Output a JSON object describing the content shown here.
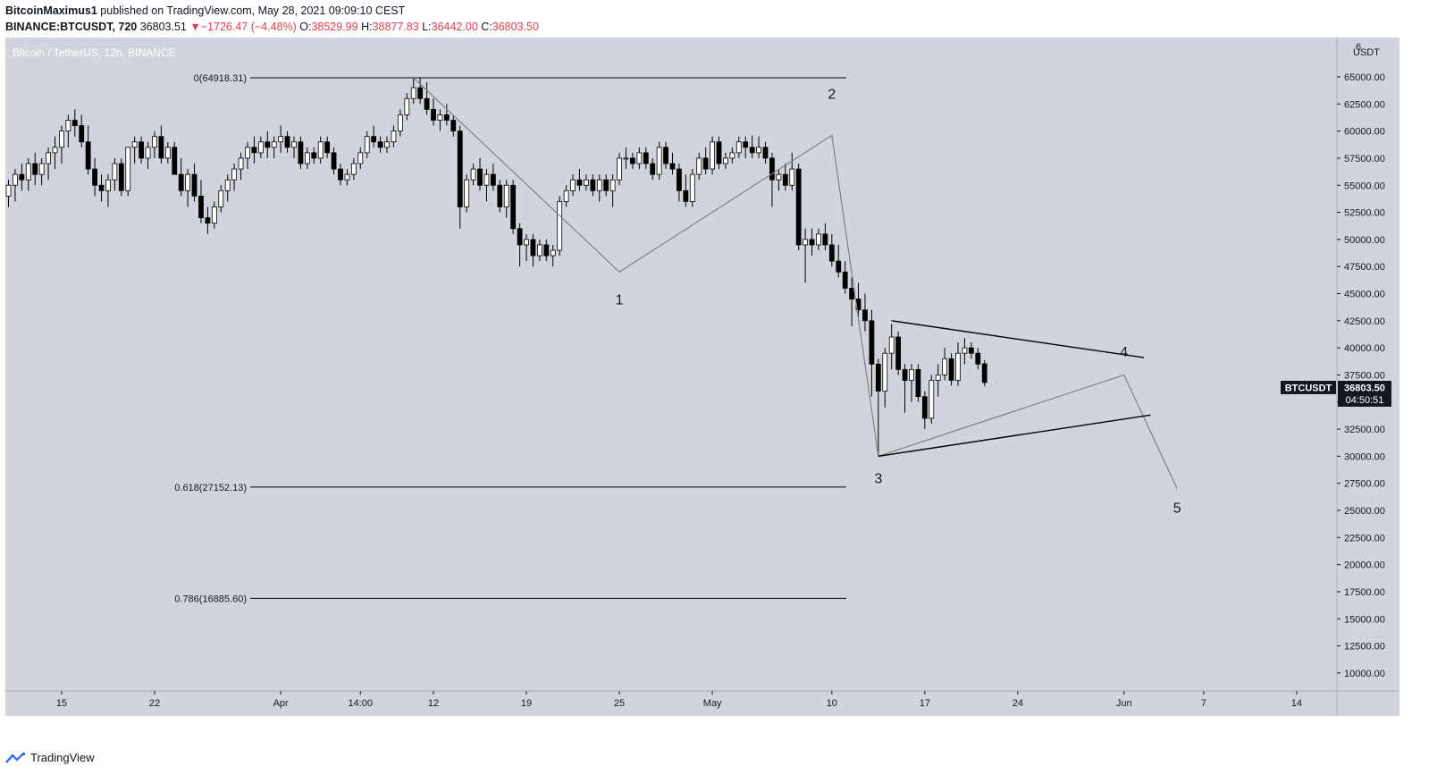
{
  "header": {
    "publisher": "BitcoinMaximus1",
    "published_text": "published on TradingView.com, May 28, 2021 09:09:10 CEST",
    "symbol_line": "BINANCE:BTCUSDT, 720",
    "last": "36803.51",
    "change_arrow": "▼",
    "change": "−1726.47 (−4.48%)",
    "o_label": "O:",
    "o": "38529.99",
    "h_label": "H:",
    "h": "38877.83",
    "l_label": "L:",
    "l": "36442.00",
    "c_label": "C:",
    "c": "36803.50"
  },
  "chart_title": "Bitcoin / TetherUS, 12h, BINANCE",
  "currency_label": "USDT",
  "price_axis_top_partial": "6",
  "price_tag": {
    "symbol": "BTCUSDT",
    "price": "36803.50",
    "countdown": "04:50:51"
  },
  "footer": {
    "brand": "TradingView"
  },
  "colors": {
    "background": "#d1d4dc",
    "candle_up": "#ffffff",
    "candle_down": "#000000",
    "wave": "#808080",
    "trendline": "#000000",
    "accent_red": "#e0424d"
  },
  "chart_data": {
    "type": "candlestick",
    "title": "Bitcoin / TetherUS, 12h, BINANCE",
    "ylim": [
      9000,
      66500
    ],
    "y_ticks": [
      10000,
      12500,
      15000,
      17500,
      20000,
      22500,
      25000,
      27500,
      30000,
      32500,
      35000,
      37500,
      40000,
      42500,
      45000,
      47500,
      50000,
      52500,
      55000,
      57500,
      60000,
      62500,
      65000
    ],
    "y_tick_labels": [
      "10000.00",
      "12500.00",
      "15000.00",
      "17500.00",
      "20000.00",
      "22500.00",
      "25000.00",
      "27500.00",
      "30000.00",
      "32500.00",
      "35000.00",
      "37500.00",
      "40000.00",
      "42500.00",
      "45000.00",
      "47500.00",
      "50000.00",
      "52500.00",
      "55000.00",
      "57500.00",
      "60000.00",
      "62500.00",
      "65000.00"
    ],
    "x_ticks": [
      {
        "label": "15",
        "t": 8
      },
      {
        "label": "22",
        "t": 22
      },
      {
        "label": "Apr",
        "t": 41
      },
      {
        "label": "14:00",
        "t": 53
      },
      {
        "label": "12",
        "t": 64
      },
      {
        "label": "19",
        "t": 78
      },
      {
        "label": "25",
        "t": 92
      },
      {
        "label": "May",
        "t": 106
      },
      {
        "label": "10",
        "t": 124
      },
      {
        "label": "17",
        "t": 138
      },
      {
        "label": "24",
        "t": 152
      },
      {
        "label": "Jun",
        "t": 168
      },
      {
        "label": "7",
        "t": 180
      },
      {
        "label": "14",
        "t": 194
      }
    ],
    "candles": [
      [
        0,
        54000,
        55500,
        53000,
        55000
      ],
      [
        1,
        55000,
        56500,
        53500,
        56000
      ],
      [
        2,
        56000,
        57000,
        54500,
        55500
      ],
      [
        3,
        55500,
        57500,
        54500,
        57000
      ],
      [
        4,
        57000,
        58000,
        55000,
        56000
      ],
      [
        5,
        56000,
        57500,
        55000,
        57000
      ],
      [
        6,
        57000,
        58500,
        55500,
        58000
      ],
      [
        7,
        58000,
        59500,
        56500,
        58500
      ],
      [
        8,
        58500,
        60500,
        57000,
        60000
      ],
      [
        9,
        60000,
        61500,
        58500,
        61000
      ],
      [
        10,
        61000,
        62000,
        59500,
        60500
      ],
      [
        11,
        60500,
        61500,
        58500,
        59000
      ],
      [
        12,
        59000,
        60500,
        56000,
        56500
      ],
      [
        13,
        56500,
        57500,
        54000,
        55000
      ],
      [
        14,
        55000,
        56000,
        53500,
        54500
      ],
      [
        15,
        54500,
        56000,
        53000,
        55500
      ],
      [
        16,
        55500,
        57500,
        54500,
        57000
      ],
      [
        17,
        57000,
        57500,
        54000,
        54500
      ],
      [
        18,
        54500,
        58500,
        54000,
        58500
      ],
      [
        19,
        58500,
        59500,
        57000,
        59000
      ],
      [
        20,
        59000,
        59500,
        57000,
        57500
      ],
      [
        21,
        57500,
        59000,
        56500,
        58500
      ],
      [
        22,
        58500,
        60000,
        57500,
        59500
      ],
      [
        23,
        59500,
        60500,
        57000,
        57500
      ],
      [
        24,
        57500,
        59000,
        57000,
        58500
      ],
      [
        25,
        58500,
        59000,
        56000,
        56000
      ],
      [
        26,
        56000,
        57500,
        54000,
        54500
      ],
      [
        27,
        54500,
        56500,
        53000,
        56000
      ],
      [
        28,
        56000,
        57000,
        53500,
        54000
      ],
      [
        29,
        54000,
        55500,
        51500,
        52000
      ],
      [
        30,
        52000,
        53000,
        50500,
        51500
      ],
      [
        31,
        51500,
        53500,
        51000,
        53000
      ],
      [
        32,
        53000,
        55000,
        52500,
        54500
      ],
      [
        33,
        54500,
        56000,
        53500,
        55500
      ],
      [
        34,
        55500,
        57000,
        54500,
        56500
      ],
      [
        35,
        56500,
        58000,
        55500,
        57500
      ],
      [
        36,
        57500,
        59000,
        56500,
        58500
      ],
      [
        37,
        58500,
        59500,
        57000,
        58000
      ],
      [
        38,
        58000,
        59500,
        57500,
        59000
      ],
      [
        39,
        59000,
        60000,
        57500,
        58500
      ],
      [
        40,
        58500,
        59500,
        57500,
        59000
      ],
      [
        41,
        59000,
        60500,
        58000,
        59500
      ],
      [
        42,
        59500,
        60000,
        58000,
        58500
      ],
      [
        43,
        58500,
        59500,
        57500,
        59000
      ],
      [
        44,
        59000,
        59500,
        56500,
        57000
      ],
      [
        45,
        57000,
        58500,
        56500,
        58000
      ],
      [
        46,
        58000,
        58500,
        57000,
        57500
      ],
      [
        47,
        57500,
        59500,
        57000,
        59000
      ],
      [
        48,
        59000,
        59500,
        57500,
        58000
      ],
      [
        49,
        58000,
        58500,
        56000,
        56500
      ],
      [
        50,
        56500,
        57000,
        55000,
        55500
      ],
      [
        51,
        55500,
        56500,
        55000,
        56000
      ],
      [
        52,
        56000,
        57500,
        55500,
        57000
      ],
      [
        53,
        57000,
        58500,
        56500,
        58000
      ],
      [
        54,
        58000,
        60000,
        57500,
        59500
      ],
      [
        55,
        59500,
        60500,
        58500,
        59000
      ],
      [
        56,
        59000,
        59500,
        58000,
        58500
      ],
      [
        57,
        58500,
        59500,
        58000,
        59000
      ],
      [
        58,
        59000,
        60500,
        58500,
        60000
      ],
      [
        59,
        60000,
        62000,
        59500,
        61500
      ],
      [
        60,
        61500,
        63500,
        61000,
        63000
      ],
      [
        61,
        63000,
        64918,
        62500,
        64000
      ],
      [
        62,
        64000,
        64900,
        62500,
        63000
      ],
      [
        63,
        63000,
        64500,
        61500,
        62000
      ],
      [
        64,
        62000,
        63000,
        60500,
        61000
      ],
      [
        65,
        61000,
        62000,
        60000,
        61500
      ],
      [
        66,
        61500,
        62500,
        60500,
        61000
      ],
      [
        67,
        61000,
        61500,
        59500,
        60000
      ],
      [
        68,
        60000,
        60500,
        51000,
        53000
      ],
      [
        69,
        53000,
        56000,
        52500,
        55500
      ],
      [
        70,
        55500,
        57000,
        55000,
        56500
      ],
      [
        71,
        56500,
        57500,
        54500,
        55000
      ],
      [
        72,
        55000,
        56500,
        53500,
        56000
      ],
      [
        73,
        56000,
        57000,
        54500,
        55000
      ],
      [
        74,
        55000,
        55500,
        52500,
        53000
      ],
      [
        75,
        53000,
        55500,
        52000,
        55000
      ],
      [
        76,
        55000,
        55500,
        50500,
        51000
      ],
      [
        77,
        51000,
        51500,
        47500,
        49500
      ],
      [
        78,
        49500,
        50500,
        48000,
        50000
      ],
      [
        79,
        50000,
        50500,
        47500,
        48500
      ],
      [
        80,
        48500,
        50000,
        48000,
        49500
      ],
      [
        81,
        49500,
        50000,
        48000,
        48500
      ],
      [
        82,
        48500,
        49500,
        47500,
        49000
      ],
      [
        83,
        49000,
        54000,
        48500,
        53500
      ],
      [
        84,
        53500,
        55000,
        53000,
        54500
      ],
      [
        85,
        54500,
        56000,
        54000,
        55500
      ],
      [
        86,
        55500,
        56500,
        54500,
        55000
      ],
      [
        87,
        55000,
        56000,
        54500,
        55500
      ],
      [
        88,
        55500,
        56000,
        54000,
        54500
      ],
      [
        89,
        54500,
        56000,
        53500,
        55500
      ],
      [
        90,
        55500,
        56000,
        54000,
        54500
      ],
      [
        91,
        54500,
        56000,
        53000,
        55500
      ],
      [
        92,
        55500,
        58000,
        55000,
        57500
      ],
      [
        93,
        57500,
        58500,
        56500,
        57500
      ],
      [
        94,
        57500,
        58000,
        56500,
        57000
      ],
      [
        95,
        57000,
        58500,
        56500,
        58000
      ],
      [
        96,
        58000,
        58500,
        56500,
        57000
      ],
      [
        97,
        57000,
        57500,
        55500,
        56000
      ],
      [
        98,
        56000,
        59000,
        55500,
        58500
      ],
      [
        99,
        58500,
        59000,
        56500,
        57000
      ],
      [
        100,
        57000,
        58000,
        56000,
        56500
      ],
      [
        101,
        56500,
        57000,
        53500,
        54500
      ],
      [
        102,
        54500,
        56000,
        53000,
        53500
      ],
      [
        103,
        53500,
        56500,
        53000,
        56000
      ],
      [
        104,
        56000,
        58000,
        55500,
        57500
      ],
      [
        105,
        57500,
        58500,
        56000,
        56500
      ],
      [
        106,
        56500,
        59500,
        56000,
        59000
      ],
      [
        107,
        59000,
        59500,
        56500,
        57000
      ],
      [
        108,
        57000,
        58000,
        56500,
        57500
      ],
      [
        109,
        57500,
        58500,
        57000,
        58000
      ],
      [
        110,
        58000,
        59500,
        57500,
        59000
      ],
      [
        111,
        59000,
        59500,
        57500,
        58500
      ],
      [
        112,
        58500,
        59600,
        57500,
        58000
      ],
      [
        113,
        58000,
        59500,
        57500,
        58500
      ],
      [
        114,
        58500,
        59000,
        57000,
        57500
      ],
      [
        115,
        57500,
        58000,
        53000,
        55500
      ],
      [
        116,
        55500,
        56500,
        54500,
        56000
      ],
      [
        117,
        56000,
        57000,
        54500,
        55000
      ],
      [
        118,
        55000,
        58000,
        54500,
        56500
      ],
      [
        119,
        56500,
        57000,
        49000,
        49500
      ],
      [
        120,
        49500,
        51000,
        46000,
        50000
      ],
      [
        121,
        50000,
        51000,
        48500,
        49500
      ],
      [
        122,
        49500,
        51000,
        49000,
        50500
      ],
      [
        123,
        50500,
        51500,
        49000,
        49500
      ],
      [
        124,
        49500,
        50500,
        47500,
        48000
      ],
      [
        125,
        48000,
        49500,
        46500,
        47000
      ],
      [
        126,
        47000,
        48000,
        45000,
        45500
      ],
      [
        127,
        45500,
        46500,
        42000,
        44500
      ],
      [
        128,
        44500,
        46000,
        42500,
        43500
      ],
      [
        129,
        43500,
        45000,
        41500,
        42500
      ],
      [
        130,
        42500,
        43500,
        35500,
        38500
      ],
      [
        131,
        38500,
        39000,
        30000,
        36000
      ],
      [
        132,
        36000,
        40000,
        34500,
        39500
      ],
      [
        133,
        39500,
        42200,
        38000,
        41000
      ],
      [
        134,
        41000,
        41500,
        37500,
        38000
      ],
      [
        135,
        38000,
        38500,
        34000,
        37000
      ],
      [
        136,
        37000,
        38500,
        35000,
        38000
      ],
      [
        137,
        38000,
        38500,
        35000,
        35500
      ],
      [
        138,
        35500,
        36000,
        32500,
        33500
      ],
      [
        139,
        33500,
        37500,
        33000,
        37000
      ],
      [
        140,
        37000,
        38500,
        35500,
        37500
      ],
      [
        141,
        37500,
        40000,
        37000,
        39000
      ],
      [
        142,
        39000,
        39500,
        36500,
        37000
      ],
      [
        143,
        37000,
        40500,
        36500,
        39500
      ],
      [
        144,
        39500,
        40900,
        38500,
        40000
      ],
      [
        145,
        40000,
        40500,
        39000,
        39500
      ],
      [
        146,
        39500,
        40000,
        38000,
        38500
      ],
      [
        147,
        38529.99,
        38877.83,
        36442.0,
        36803.5
      ]
    ],
    "fib_levels": [
      {
        "label": "0(64918.31)",
        "value": 64918.31
      },
      {
        "label": "0.618(27152.13)",
        "value": 27152.13
      },
      {
        "label": "0.786(16885.60)",
        "value": 16885.6
      }
    ],
    "wave_path": [
      [
        61,
        64918
      ],
      [
        92,
        47000
      ],
      [
        124,
        59600
      ],
      [
        131,
        30000
      ],
      [
        168,
        37500
      ],
      [
        176,
        27000
      ]
    ],
    "wave_labels": [
      {
        "label": "1",
        "t": 92,
        "v": 44000
      },
      {
        "label": "2",
        "t": 124,
        "v": 63000
      },
      {
        "label": "3",
        "t": 131,
        "v": 27500
      },
      {
        "label": "4",
        "t": 168,
        "v": 39200
      },
      {
        "label": "5",
        "t": 176,
        "v": 24800
      }
    ],
    "triangle": {
      "upper": [
        [
          133,
          42500
        ],
        [
          171,
          39100
        ]
      ],
      "lower": [
        [
          131,
          30000
        ],
        [
          172,
          33800
        ]
      ]
    }
  }
}
